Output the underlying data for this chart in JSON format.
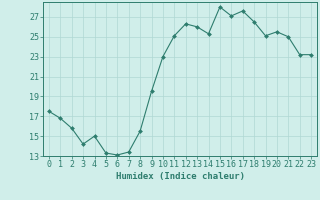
{
  "x": [
    0,
    1,
    2,
    3,
    4,
    5,
    6,
    7,
    8,
    9,
    10,
    11,
    12,
    13,
    14,
    15,
    16,
    17,
    18,
    19,
    20,
    21,
    22,
    23
  ],
  "y": [
    17.5,
    16.8,
    15.8,
    14.2,
    15.0,
    13.3,
    13.1,
    13.4,
    15.5,
    19.5,
    23.0,
    25.1,
    26.3,
    26.0,
    25.3,
    28.0,
    27.1,
    27.6,
    26.5,
    25.1,
    25.5,
    25.0,
    23.2,
    23.2
  ],
  "line_color": "#2e7d6e",
  "marker_color": "#2e7d6e",
  "bg_color": "#d0eeea",
  "grid_color": "#b0d8d4",
  "axis_color": "#2e7d6e",
  "xlabel": "Humidex (Indice chaleur)",
  "ylim": [
    13,
    28
  ],
  "yticks": [
    13,
    15,
    17,
    19,
    21,
    23,
    25,
    27
  ],
  "xticks": [
    0,
    1,
    2,
    3,
    4,
    5,
    6,
    7,
    8,
    9,
    10,
    11,
    12,
    13,
    14,
    15,
    16,
    17,
    18,
    19,
    20,
    21,
    22,
    23
  ],
  "xlabel_fontsize": 6.5,
  "tick_fontsize": 6.0
}
